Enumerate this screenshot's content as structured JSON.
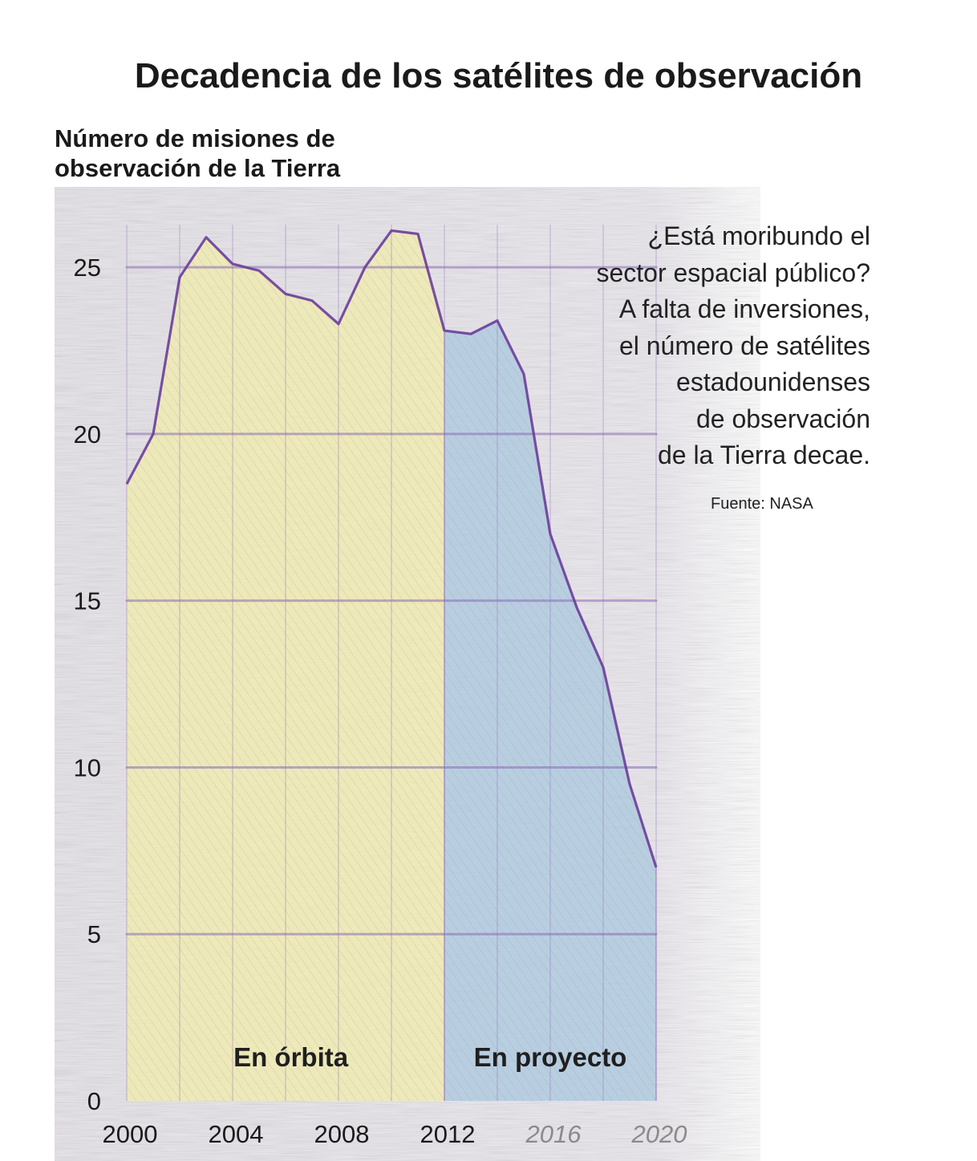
{
  "title": "Decadencia de los satélites de observación",
  "annotation": {
    "lines": [
      "¿Está moribundo el",
      "sector espacial público?",
      "A falta de inversiones,",
      "el número de satélites",
      "estadounidenses",
      "de observación",
      "de la Tierra decae."
    ],
    "source": "Fuente: NASA"
  },
  "chart_data": {
    "type": "area",
    "title": "Decadencia de los satélites de observación",
    "ylabel": "Número de misiones de observación de la Tierra",
    "xlabel": "",
    "ylim": [
      0,
      27
    ],
    "xlim": [
      2000,
      2020
    ],
    "y_ticks": [
      0,
      5,
      10,
      15,
      20,
      25
    ],
    "x_ticks": [
      {
        "value": 2000,
        "label": "2000",
        "projected": false
      },
      {
        "value": 2004,
        "label": "2004",
        "projected": false
      },
      {
        "value": 2008,
        "label": "2008",
        "projected": false
      },
      {
        "value": 2012,
        "label": "2012",
        "projected": false
      },
      {
        "value": 2016,
        "label": "2016",
        "projected": true
      },
      {
        "value": 2020,
        "label": "2020",
        "projected": true
      }
    ],
    "grid": true,
    "series": [
      {
        "name": "En órbita",
        "color": "#e9e27a",
        "x": [
          2000,
          2001,
          2002,
          2003,
          2004,
          2005,
          2006,
          2007,
          2008,
          2009,
          2010,
          2011,
          2012
        ],
        "values": [
          18.5,
          20,
          24.7,
          25.9,
          25.1,
          24.9,
          24.2,
          24.0,
          23.3,
          25.0,
          26.1,
          26.0,
          23.1
        ]
      },
      {
        "name": "En proyecto",
        "color": "#7fb3d6",
        "x": [
          2012,
          2013,
          2014,
          2015,
          2016,
          2017,
          2018,
          2019,
          2020
        ],
        "values": [
          23.1,
          23.0,
          23.4,
          21.8,
          17.0,
          14.8,
          13.0,
          9.5,
          7.0
        ]
      }
    ],
    "region_labels": [
      "En órbita",
      "En proyecto"
    ]
  },
  "colors": {
    "line": "#6a3d9a",
    "grid": "#8a6bb5",
    "orbit_fill": "#f2ecaa",
    "project_fill": "#a9c8dd",
    "paper": "#ebe8ee"
  }
}
